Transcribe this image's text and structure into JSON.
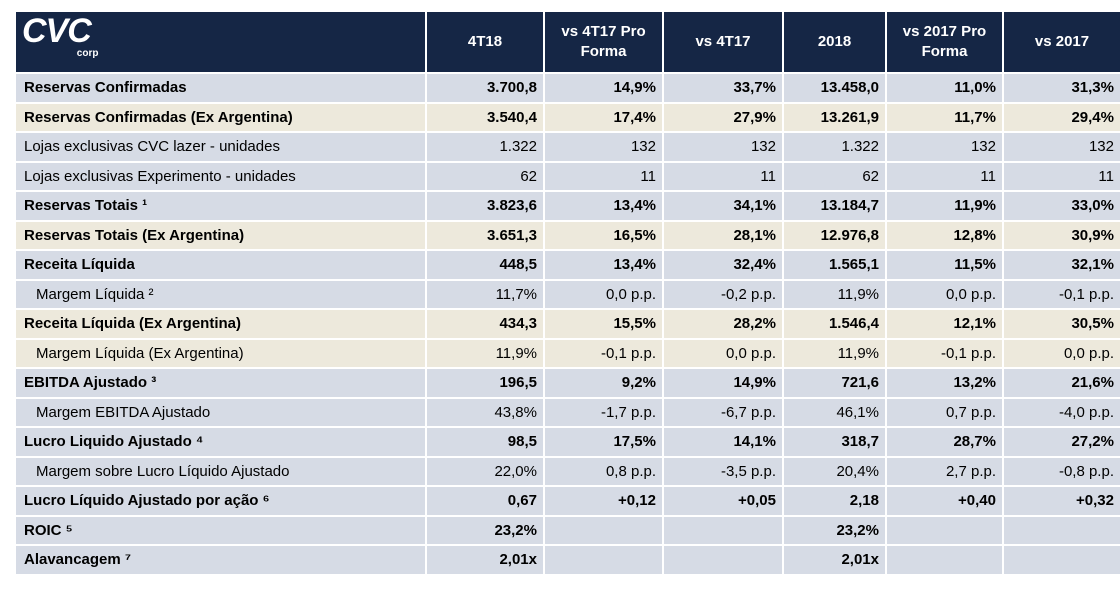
{
  "logo": {
    "name": "CVC",
    "sub": "corp"
  },
  "table": {
    "header": [
      "4T18",
      "vs 4T17 Pro Forma",
      "vs 4T17",
      "2018",
      "vs 2017 Pro Forma",
      "vs 2017"
    ],
    "rows": [
      {
        "label": "Reservas Confirmadas",
        "bold": true,
        "highlight": false,
        "cells": [
          "3.700,8",
          "14,9%",
          "33,7%",
          "13.458,0",
          "11,0%",
          "31,3%"
        ]
      },
      {
        "label": "Reservas Confirmadas (Ex Argentina)",
        "bold": true,
        "highlight": true,
        "cells": [
          "3.540,4",
          "17,4%",
          "27,9%",
          "13.261,9",
          "11,7%",
          "29,4%"
        ]
      },
      {
        "label": "Lojas exclusivas CVC lazer - unidades",
        "bold": false,
        "highlight": false,
        "cells": [
          "1.322",
          "132",
          "132",
          "1.322",
          "132",
          "132"
        ]
      },
      {
        "label": "Lojas exclusivas Experimento - unidades",
        "bold": false,
        "highlight": false,
        "cells": [
          "62",
          "11",
          "11",
          "62",
          "11",
          "11"
        ]
      },
      {
        "label": "Reservas Totais ¹",
        "bold": true,
        "highlight": false,
        "cells": [
          "3.823,6",
          "13,4%",
          "34,1%",
          "13.184,7",
          "11,9%",
          "33,0%"
        ]
      },
      {
        "label": "Reservas Totais (Ex Argentina)",
        "bold": true,
        "highlight": true,
        "cells": [
          "3.651,3",
          "16,5%",
          "28,1%",
          "12.976,8",
          "12,8%",
          "30,9%"
        ]
      },
      {
        "label": "Receita Líquida",
        "bold": true,
        "highlight": false,
        "cells": [
          "448,5",
          "13,4%",
          "32,4%",
          "1.565,1",
          "11,5%",
          "32,1%"
        ]
      },
      {
        "label": "Margem Líquida ²",
        "bold": false,
        "highlight": false,
        "cells": [
          "11,7%",
          "0,0 p.p.",
          "-0,2 p.p.",
          "11,9%",
          "0,0 p.p.",
          "-0,1 p.p."
        ]
      },
      {
        "label": "Receita Líquida (Ex Argentina)",
        "bold": true,
        "highlight": true,
        "cells": [
          "434,3",
          "15,5%",
          "28,2%",
          "1.546,4",
          "12,1%",
          "30,5%"
        ]
      },
      {
        "label": "Margem Líquida (Ex Argentina)",
        "bold": false,
        "highlight": true,
        "cells": [
          "11,9%",
          "-0,1 p.p.",
          "0,0 p.p.",
          "11,9%",
          "-0,1 p.p.",
          "0,0 p.p."
        ]
      },
      {
        "label": "EBITDA Ajustado ³",
        "bold": true,
        "highlight": false,
        "cells": [
          "196,5",
          "9,2%",
          "14,9%",
          "721,6",
          "13,2%",
          "21,6%"
        ]
      },
      {
        "label": "Margem EBITDA Ajustado",
        "bold": false,
        "highlight": false,
        "cells": [
          "43,8%",
          "-1,7 p.p.",
          "-6,7 p.p.",
          "46,1%",
          "0,7 p.p.",
          "-4,0 p.p."
        ]
      },
      {
        "label": "Lucro Liquido Ajustado ⁴",
        "bold": true,
        "highlight": false,
        "cells": [
          "98,5",
          "17,5%",
          "14,1%",
          "318,7",
          "28,7%",
          "27,2%"
        ]
      },
      {
        "label": "Margem sobre Lucro Líquido Ajustado",
        "bold": false,
        "highlight": false,
        "cells": [
          "22,0%",
          "0,8 p.p.",
          "-3,5 p.p.",
          "20,4%",
          "2,7 p.p.",
          "-0,8 p.p."
        ]
      },
      {
        "label": "Lucro Líquido Ajustado por ação ⁶",
        "bold": true,
        "highlight": false,
        "cells": [
          "0,67",
          "+0,12",
          "+0,05",
          "2,18",
          "+0,40",
          "+0,32"
        ]
      },
      {
        "label": "ROIC ⁵",
        "bold": true,
        "highlight": false,
        "cells": [
          "23,2%",
          null,
          null,
          "23,2%",
          null,
          null
        ]
      },
      {
        "label": "Alavancagem ⁷",
        "bold": true,
        "highlight": false,
        "cells": [
          "2,01x",
          null,
          null,
          "2,01x",
          null,
          null
        ]
      }
    ]
  }
}
